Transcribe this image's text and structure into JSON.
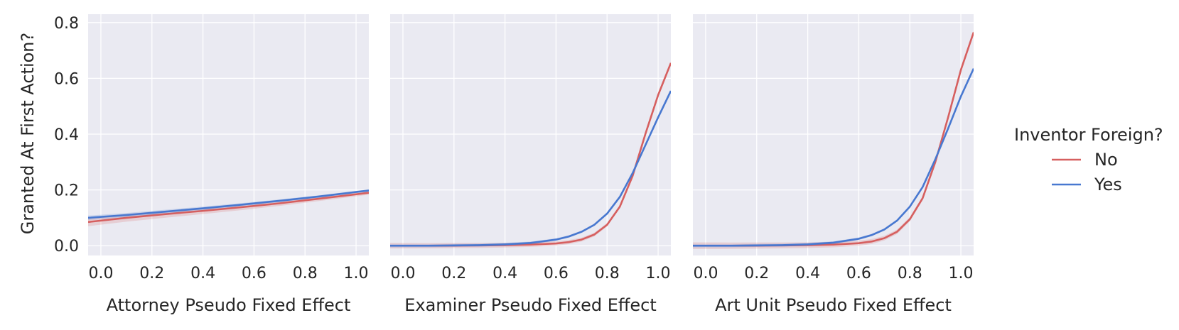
{
  "chart_data": [
    {
      "type": "line",
      "xlabel": "Attorney Pseudo Fixed Effect",
      "ylabel": "Granted At First Action?",
      "xlim": [
        -0.05,
        1.05
      ],
      "ylim": [
        -0.035,
        0.83
      ],
      "xticks": [
        "0.0",
        "0.2",
        "0.4",
        "0.6",
        "0.8",
        "1.0"
      ],
      "yticks": [
        "0.0",
        "0.2",
        "0.4",
        "0.6",
        "0.8"
      ],
      "grid": true,
      "x": [
        -0.05,
        0.1,
        0.25,
        0.4,
        0.55,
        0.7,
        0.85,
        1.05
      ],
      "series": [
        {
          "name": "No",
          "values": [
            0.085,
            0.1,
            0.113,
            0.125,
            0.138,
            0.152,
            0.168,
            0.19
          ],
          "ci": 0.015
        },
        {
          "name": "Yes",
          "values": [
            0.1,
            0.11,
            0.122,
            0.134,
            0.147,
            0.161,
            0.176,
            0.198
          ],
          "ci": 0.008
        }
      ]
    },
    {
      "type": "line",
      "xlabel": "Examiner Pseudo Fixed Effect",
      "xlim": [
        -0.05,
        1.05
      ],
      "ylim": [
        -0.035,
        0.83
      ],
      "xticks": [
        "0.0",
        "0.2",
        "0.4",
        "0.6",
        "0.8",
        "1.0"
      ],
      "grid": true,
      "x": [
        -0.05,
        0.1,
        0.2,
        0.3,
        0.4,
        0.5,
        0.6,
        0.65,
        0.7,
        0.75,
        0.8,
        0.85,
        0.9,
        0.95,
        1.0,
        1.05
      ],
      "series": [
        {
          "name": "No",
          "values": [
            0.0,
            0.0,
            0.0005,
            0.001,
            0.002,
            0.004,
            0.008,
            0.013,
            0.022,
            0.04,
            0.075,
            0.14,
            0.25,
            0.4,
            0.54,
            0.655
          ],
          "ci": 0.01
        },
        {
          "name": "Yes",
          "values": [
            0.0,
            0.0,
            0.001,
            0.002,
            0.005,
            0.01,
            0.022,
            0.033,
            0.05,
            0.075,
            0.115,
            0.175,
            0.26,
            0.36,
            0.46,
            0.555
          ],
          "ci": 0.006
        }
      ]
    },
    {
      "type": "line",
      "xlabel": "Art Unit Pseudo Fixed Effect",
      "xlim": [
        -0.05,
        1.05
      ],
      "ylim": [
        -0.035,
        0.83
      ],
      "xticks": [
        "0.0",
        "0.2",
        "0.4",
        "0.6",
        "0.8",
        "1.0"
      ],
      "grid": true,
      "x": [
        -0.05,
        0.1,
        0.2,
        0.3,
        0.4,
        0.5,
        0.6,
        0.65,
        0.7,
        0.75,
        0.8,
        0.85,
        0.9,
        0.95,
        1.0,
        1.05
      ],
      "series": [
        {
          "name": "No",
          "values": [
            0.0,
            0.0,
            0.0005,
            0.001,
            0.002,
            0.004,
            0.009,
            0.015,
            0.027,
            0.05,
            0.095,
            0.17,
            0.3,
            0.46,
            0.63,
            0.765
          ],
          "ci": 0.012
        },
        {
          "name": "Yes",
          "values": [
            0.0,
            0.0,
            0.001,
            0.002,
            0.005,
            0.011,
            0.025,
            0.038,
            0.058,
            0.09,
            0.14,
            0.21,
            0.31,
            0.42,
            0.535,
            0.635
          ],
          "ci": 0.006
        }
      ]
    }
  ],
  "legend": {
    "title": "Inventor Foreign?",
    "entries": [
      {
        "label": "No",
        "color": "#d65f5f"
      },
      {
        "label": "Yes",
        "color": "#4878d0"
      }
    ],
    "placement": "right"
  },
  "colors": {
    "panel_bg": "#eaeaf2",
    "grid": "#ffffff",
    "text": "#262626"
  }
}
